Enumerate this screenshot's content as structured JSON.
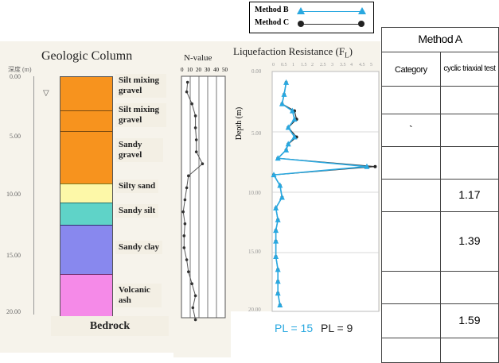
{
  "legend": {
    "method_b": "Method B",
    "method_c": "Method C",
    "color_b": "#29a8e0",
    "color_c": "#333333"
  },
  "geologic": {
    "title": "Geologic Column",
    "depth_axis_label": "深度 (m)",
    "depth_ticks": [
      "0.00",
      "5.00",
      "10.00",
      "15.00",
      "20.00"
    ],
    "layers": [
      {
        "name": "Silt mixing gravel",
        "color": "#f7931e"
      },
      {
        "name": "Silt mixing gravel",
        "color": "#f7931e"
      },
      {
        "name": "Sandy gravel",
        "color": "#f7931e"
      },
      {
        "name": "Silty sand",
        "color": "#fdf8a8"
      },
      {
        "name": "Sandy silt",
        "color": "#5fd3c8"
      },
      {
        "name": "Sandy clay",
        "color": "#8888ee"
      },
      {
        "name": "Volcanic ash",
        "color": "#f58ae8"
      }
    ],
    "bedrock": "Bedrock"
  },
  "nvalue": {
    "title": "N-value",
    "ticks": [
      "0",
      "10",
      "20",
      "30",
      "40",
      "50"
    ],
    "points": [
      [
        7,
        0.5
      ],
      [
        6,
        1.3
      ],
      [
        12,
        2.3
      ],
      [
        16,
        3.3
      ],
      [
        16,
        4.3
      ],
      [
        17,
        5.3
      ],
      [
        17,
        6.3
      ],
      [
        24,
        7.3
      ],
      [
        8,
        8.3
      ],
      [
        6,
        9.3
      ],
      [
        4,
        10.3
      ],
      [
        2,
        11.3
      ],
      [
        4,
        12.3
      ],
      [
        3,
        13.3
      ],
      [
        3,
        14.3
      ],
      [
        6,
        15.3
      ],
      [
        8,
        16.3
      ],
      [
        12,
        17.3
      ],
      [
        16,
        18.3
      ],
      [
        13,
        19.3
      ],
      [
        16,
        20.3
      ]
    ]
  },
  "lique": {
    "title": "Liquefaction Resistance (F",
    "title_sub": "L",
    "title_end": ")",
    "depth_label": "Depth (m)",
    "depth_ticks": [
      "0.00",
      "5.00",
      "10.00",
      "15.00",
      "20.00"
    ],
    "scale_ticks": [
      "0",
      "0.5",
      "1",
      "1.5",
      "2",
      "2.5",
      "3",
      "3.5",
      "4",
      "4.5",
      "5"
    ],
    "pl_b": "PL = 15",
    "pl_c": "PL = 9"
  },
  "chart_data": {
    "type": "line",
    "title": "Liquefaction Resistance (FL)",
    "ylabel": "Depth (m)",
    "ylim": [
      0,
      20
    ],
    "xlim": [
      0,
      5
    ],
    "series": [
      {
        "name": "Method B",
        "points": [
          [
            0.6,
            0.8
          ],
          [
            0.5,
            1.8
          ],
          [
            0.4,
            2.6
          ],
          [
            0.9,
            3.2
          ],
          [
            1.0,
            3.9
          ],
          [
            0.7,
            4.6
          ],
          [
            1.0,
            5.4
          ],
          [
            0.7,
            6.0
          ],
          [
            0.6,
            6.5
          ],
          [
            0.2,
            7.2
          ],
          [
            4.5,
            7.9
          ],
          [
            0.0,
            8.6
          ],
          [
            0.3,
            9.5
          ],
          [
            0.4,
            10.5
          ],
          [
            0.1,
            11.4
          ],
          [
            0.2,
            12.4
          ],
          [
            0.1,
            13.3
          ],
          [
            0.1,
            14.2
          ],
          [
            0.1,
            15.5
          ],
          [
            0.2,
            16.6
          ],
          [
            0.2,
            17.6
          ],
          [
            0.2,
            18.6
          ],
          [
            0.3,
            19.6
          ]
        ]
      },
      {
        "name": "Method C",
        "points": [
          [
            0.6,
            0.8
          ],
          [
            0.5,
            1.8
          ],
          [
            0.4,
            2.6
          ],
          [
            1.0,
            3.2
          ],
          [
            1.1,
            3.9
          ],
          [
            0.7,
            4.6
          ],
          [
            1.1,
            5.4
          ],
          [
            0.7,
            6.0
          ],
          [
            0.6,
            6.5
          ],
          [
            0.2,
            7.2
          ],
          [
            4.9,
            7.9
          ],
          [
            0.0,
            8.6
          ],
          [
            0.3,
            9.5
          ],
          [
            0.4,
            10.5
          ],
          [
            0.1,
            11.4
          ],
          [
            0.2,
            12.4
          ],
          [
            0.1,
            13.3
          ],
          [
            0.1,
            14.2
          ],
          [
            0.1,
            15.5
          ],
          [
            0.2,
            16.6
          ],
          [
            0.2,
            17.6
          ],
          [
            0.2,
            18.6
          ],
          [
            0.3,
            19.6
          ]
        ]
      }
    ]
  },
  "table": {
    "header": "Method A",
    "col1_header": "Category",
    "col2_header": "cyclic triaxial test",
    "values": [
      "",
      "`",
      "",
      "1.17",
      "1.39",
      "",
      "1.59",
      ""
    ]
  }
}
